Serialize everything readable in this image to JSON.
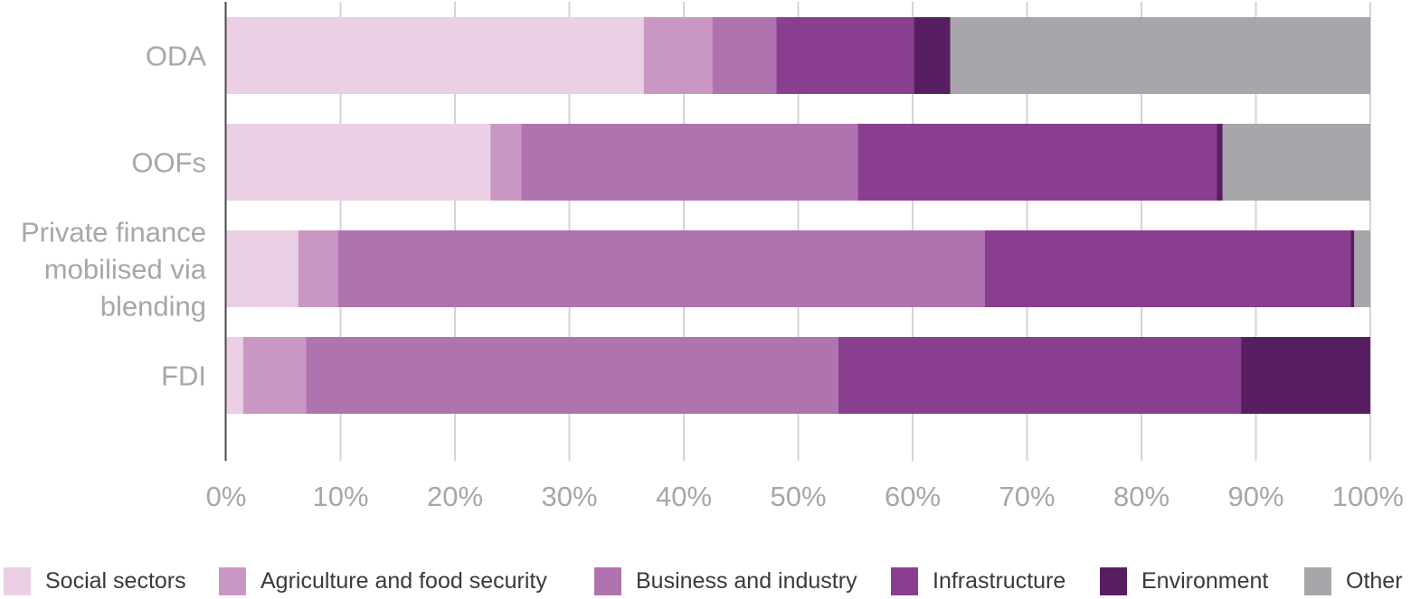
{
  "chart_data": {
    "type": "bar",
    "orientation": "horizontal",
    "stacked": true,
    "categories": [
      [
        "ODA"
      ],
      [
        "OOFs"
      ],
      [
        "Private finance",
        "mobilised via",
        "blending"
      ],
      [
        "FDI"
      ]
    ],
    "series": [
      {
        "name": "Social sectors",
        "color": "#ebcfe5",
        "values": [
          36.5,
          23.1,
          6.3,
          1.5
        ]
      },
      {
        "name": "Agriculture and food security",
        "color": "#ca97c5",
        "values": [
          6.0,
          2.7,
          3.5,
          5.5
        ]
      },
      {
        "name": "Business and industry",
        "color": "#af73af",
        "values": [
          5.6,
          29.4,
          56.5,
          46.5
        ]
      },
      {
        "name": "Infrastructure",
        "color": "#8a3e8f",
        "values": [
          12.0,
          31.4,
          32.0,
          35.2
        ]
      },
      {
        "name": "Environment",
        "color": "#581e62",
        "values": [
          3.2,
          0.5,
          0.3,
          11.3
        ]
      },
      {
        "name": "Other",
        "color": "#a8a6aa",
        "values": [
          36.7,
          12.9,
          1.4,
          0.0
        ]
      }
    ],
    "xlim": [
      0,
      100
    ],
    "x_ticks": [
      "0%",
      "10%",
      "20%",
      "30%",
      "40%",
      "50%",
      "60%",
      "70%",
      "80%",
      "90%",
      "100%"
    ],
    "grid": "vertical",
    "legend_position": "bottom"
  }
}
